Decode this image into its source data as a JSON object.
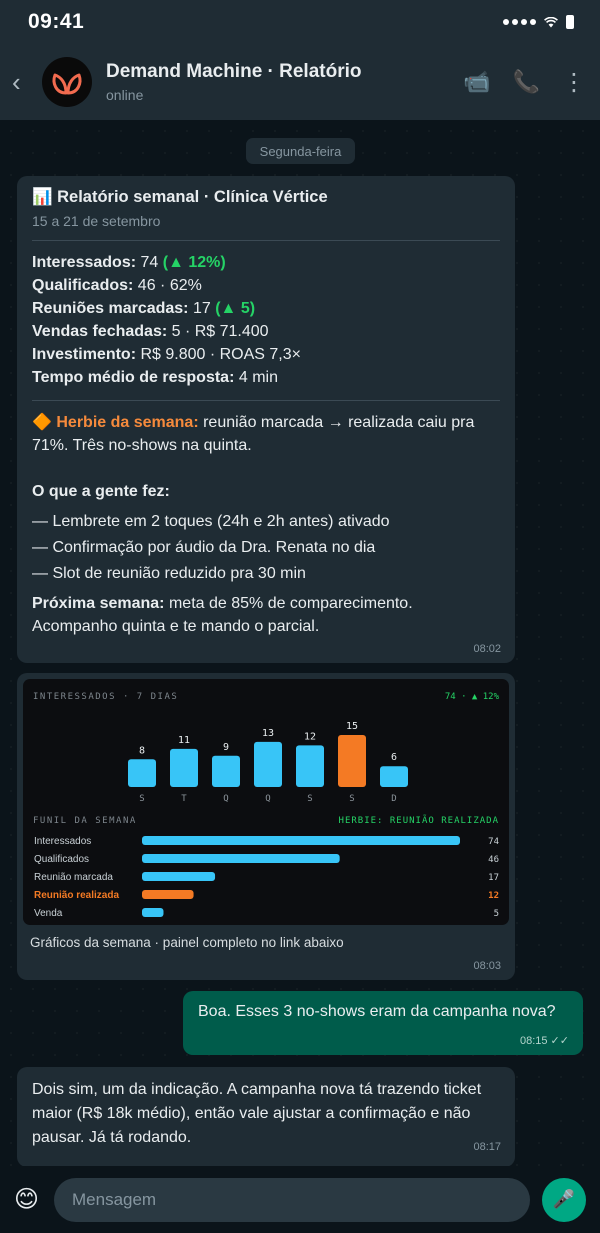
{
  "status": {
    "time": "09:41"
  },
  "header": {
    "title": "Demand Machine · Relatório",
    "status": "online",
    "back": "‹",
    "video": "📹",
    "call": "📞",
    "menu": "⋮"
  },
  "date_chip": "Segunda-feira",
  "report": {
    "title": "📊 Relatório semanal · Clínica Vértice",
    "period": "15 a 21 de setembro",
    "metrics": [
      {
        "label": "Interessados:",
        "value": " 74 ",
        "delta": "(▲ 12%)"
      },
      {
        "label": "Qualificados:",
        "value": " 46 · 62%",
        "delta": ""
      },
      {
        "label": "Reuniões marcadas:",
        "value": " 17 ",
        "delta": "(▲ 5)"
      },
      {
        "label": "Vendas fechadas:",
        "value": " 5 · R$ 71.400",
        "delta": ""
      },
      {
        "label": "Investimento:",
        "value": " R$ 9.800 · ROAS 7,3×",
        "delta": ""
      },
      {
        "label": "Tempo médio de resposta:",
        "value": " 4 min",
        "delta": ""
      }
    ],
    "herbie_icon": "🔶",
    "herbie_label": "Herbie da semana:",
    "herbie_text": " reunião marcada → realizada caiu pra 71%. Três no-shows na quinta.",
    "actions_title": "O que a gente fez:",
    "actions": [
      "— Lembrete em 2 toques (24h e 2h antes) ativado",
      "— Confirmação por áudio da Dra. Renata no dia",
      "— Slot de reunião reduzido pra 30 min"
    ],
    "next_label": "Próxima semana:",
    "next_text": " meta de 85% de comparecimento. Acompanho quinta e te mando o parcial.",
    "time": "08:02"
  },
  "chart_card": {
    "caption": "Gráficos da semana · painel completo no link abaixo",
    "time": "08:03"
  },
  "colors": {
    "accent_blue": "#38c5f7",
    "accent_orange": "#f47a24",
    "green": "#25d366"
  },
  "chart_data": [
    {
      "type": "bar",
      "title": "INTERESSADOS · 7 DIAS",
      "summary": "74 · ▲ 12%",
      "categories": [
        "S",
        "T",
        "Q",
        "Q",
        "S",
        "S",
        "D"
      ],
      "values": [
        8,
        11,
        9,
        13,
        12,
        15,
        6
      ],
      "highlight_index": 5,
      "ylim": [
        0,
        15
      ]
    },
    {
      "type": "bar",
      "orientation": "horizontal",
      "title": "FUNIL DA SEMANA",
      "note": "HERBIE: REUNIÃO REALIZADA",
      "categories": [
        "Interessados",
        "Qualificados",
        "Reunião marcada",
        "Reunião realizada",
        "Venda"
      ],
      "values": [
        74,
        46,
        17,
        12,
        5
      ],
      "highlight_index": 3,
      "xlim": [
        0,
        74
      ]
    }
  ],
  "messages": {
    "out1": {
      "text": "Boa. Esses 3 no-shows eram da campanha nova?",
      "time": "08:15 ✓✓"
    },
    "in2": {
      "text": "Dois sim, um da indicação. A campanha nova tá trazendo ticket maior (R$ 18k médio), então vale ajustar a confirmação e não pausar. Já tá rodando.",
      "time": "08:17"
    }
  },
  "composer": {
    "placeholder": "Mensagem",
    "emoji": "😊",
    "mic": "🎤"
  }
}
